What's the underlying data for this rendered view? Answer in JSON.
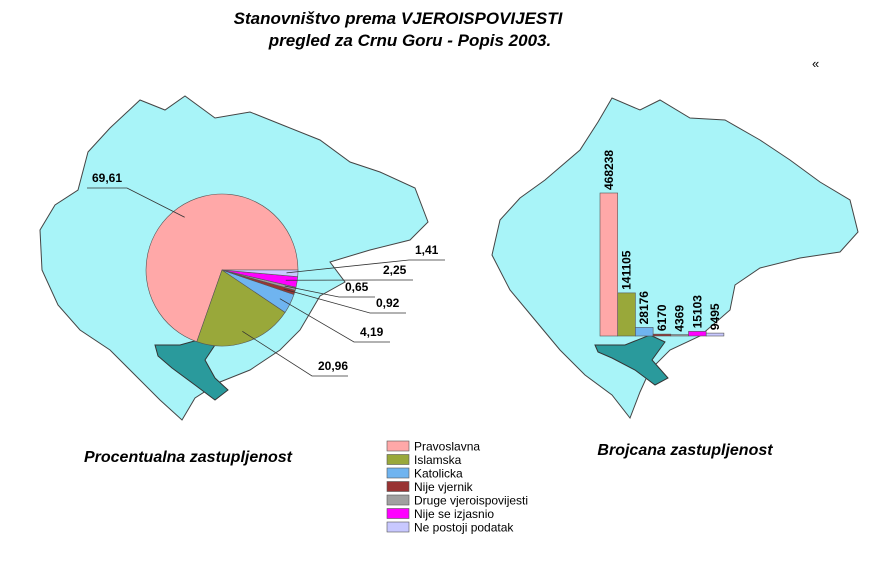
{
  "title": [
    "Stanovništvo prema VJEROISPOVIJESTI",
    "pregled za Crnu Goru - Popis 2003."
  ],
  "nav": "«",
  "chart_data": [
    {
      "type": "pie",
      "title": "Procentualna zastupljenost",
      "categories": [
        "Pravoslavna",
        "Islamska",
        "Katolicka",
        "Nije vjernik",
        "Druge vjeroispovijesti",
        "Nije se izjasnio",
        "Ne postoji podatak"
      ],
      "values": [
        69.61,
        20.96,
        4.19,
        0.92,
        0.65,
        2.25,
        1.41
      ],
      "value_labels": [
        "69,61",
        "20,96",
        "4,19",
        "0,92",
        "0,65",
        "2,25",
        "1,41"
      ],
      "colors": [
        "#ffa8a8",
        "#99a83a",
        "#6fb4f0",
        "#993333",
        "#a0a0a0",
        "#ff00ff",
        "#c8c8ff"
      ]
    },
    {
      "type": "bar",
      "title": "Brojcana zastupljenost",
      "values": [
        468238,
        141105,
        28176,
        6170,
        4369,
        15103,
        9495
      ]
    }
  ]
}
